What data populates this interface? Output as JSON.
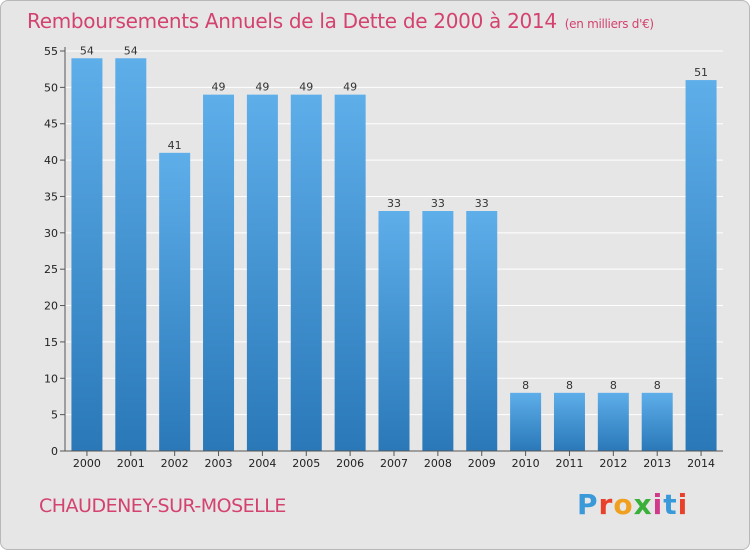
{
  "chart_data": {
    "type": "bar",
    "title": "Remboursements Annuels de la Dette de 2000 à 2014",
    "subtitle": "(en milliers d'€)",
    "categories": [
      "2000",
      "2001",
      "2002",
      "2003",
      "2004",
      "2005",
      "2006",
      "2007",
      "2008",
      "2009",
      "2010",
      "2011",
      "2012",
      "2013",
      "2014"
    ],
    "values": [
      54,
      54,
      41,
      49,
      49,
      49,
      49,
      33,
      33,
      33,
      8,
      8,
      8,
      8,
      51
    ],
    "value_labels": [
      "54",
      "54",
      "41",
      "49",
      "49",
      "49",
      "49",
      "33",
      "33",
      "33",
      "8",
      "8",
      "8",
      "8",
      "51"
    ],
    "ylim": [
      0,
      55
    ],
    "yticks": [
      0,
      5,
      10,
      15,
      20,
      25,
      30,
      35,
      40,
      45,
      50,
      55
    ],
    "ytick_labels": [
      "0",
      "5",
      "10",
      "15",
      "20",
      "25",
      "30",
      "35",
      "40",
      "45",
      "50",
      "55"
    ],
    "grid": true,
    "xlabel": "",
    "ylabel": ""
  },
  "footer": {
    "commune": "CHAUDENEY-SUR-MOSELLE",
    "logo_letters": [
      "P",
      "r",
      "o",
      "x",
      "i",
      "t",
      "i"
    ],
    "logo_colors": [
      "#3a9ad9",
      "#e8402a",
      "#f0a020",
      "#3ab03a",
      "#d13a8a",
      "#3a9ad9",
      "#e8402a"
    ]
  },
  "colors": {
    "title": "#d4426f",
    "bar_light": "#5eaeea",
    "bar_dark": "#2a78b8",
    "grid": "#ffffff"
  }
}
